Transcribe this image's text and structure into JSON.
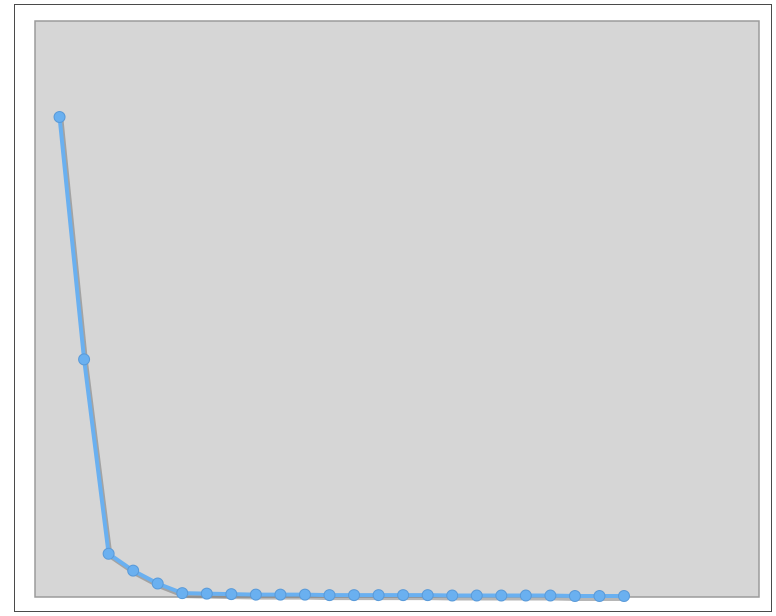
{
  "chart_data": {
    "type": "line",
    "title": "",
    "xlabel": "",
    "ylabel": "",
    "grid": false,
    "legend": "none",
    "x": [
      1,
      2,
      3,
      4,
      5,
      6,
      7,
      8,
      9,
      10,
      11,
      12,
      13,
      14,
      15,
      16,
      17,
      18,
      19,
      20,
      21,
      22,
      23,
      24
    ],
    "series": [
      {
        "name": "",
        "values": [
          100,
          49.5,
          9,
          5.5,
          2.8,
          0.8,
          0.7,
          0.6,
          0.5,
          0.5,
          0.5,
          0.4,
          0.4,
          0.4,
          0.4,
          0.4,
          0.3,
          0.3,
          0.3,
          0.3,
          0.3,
          0.2,
          0.2,
          0.2
        ]
      }
    ],
    "xlim": [
      0,
      29.5
    ],
    "ylim": [
      0,
      120
    ],
    "colors": {
      "line": "#6ab0f0",
      "marker": "#6ab0f0",
      "shadow": "#7a7a7a",
      "plot_background": "#d6d6d6",
      "plot_border": "#9a9a9a",
      "outer_border": "#4a4a4a"
    }
  }
}
